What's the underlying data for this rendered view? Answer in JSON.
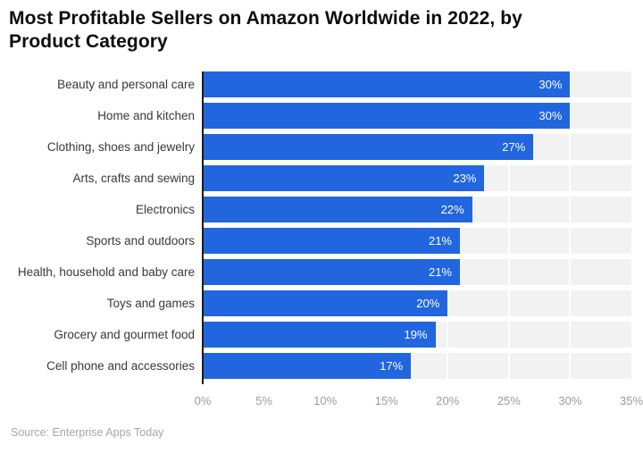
{
  "title": "Most Profitable Sellers on Amazon Worldwide in 2022, by Product Category",
  "source": "Source: Enterprise Apps Today",
  "colors": {
    "bar": "#2166df",
    "track": "#f2f2f2",
    "axis_line": "#1c1c1c",
    "tick_label": "#9b9b9b",
    "category_label": "#383838",
    "value_label": "#ffffff",
    "source_label": "#a6a6a6",
    "background": "#ffffff"
  },
  "chart_data": {
    "type": "bar",
    "orientation": "horizontal",
    "title": "Most Profitable Sellers on Amazon Worldwide in 2022, by Product Category",
    "categories": [
      "Beauty and personal care",
      "Home and kitchen",
      "Clothing, shoes and jewelry",
      "Arts, crafts and sewing",
      "Electronics",
      "Sports and outdoors",
      "Health, household and baby care",
      "Toys and games",
      "Grocery and gourmet food",
      "Cell phone and accessories"
    ],
    "values": [
      30,
      30,
      27,
      23,
      22,
      21,
      21,
      20,
      19,
      17
    ],
    "value_labels": [
      "30%",
      "30%",
      "27%",
      "23%",
      "22%",
      "21%",
      "21%",
      "20%",
      "19%",
      "17%"
    ],
    "xlabel": "",
    "ylabel": "",
    "xlim": [
      0,
      35
    ],
    "x_ticks": [
      "0%",
      "5%",
      "10%",
      "15%",
      "20%",
      "25%",
      "30%",
      "35%"
    ],
    "grid": true,
    "legend": false
  }
}
